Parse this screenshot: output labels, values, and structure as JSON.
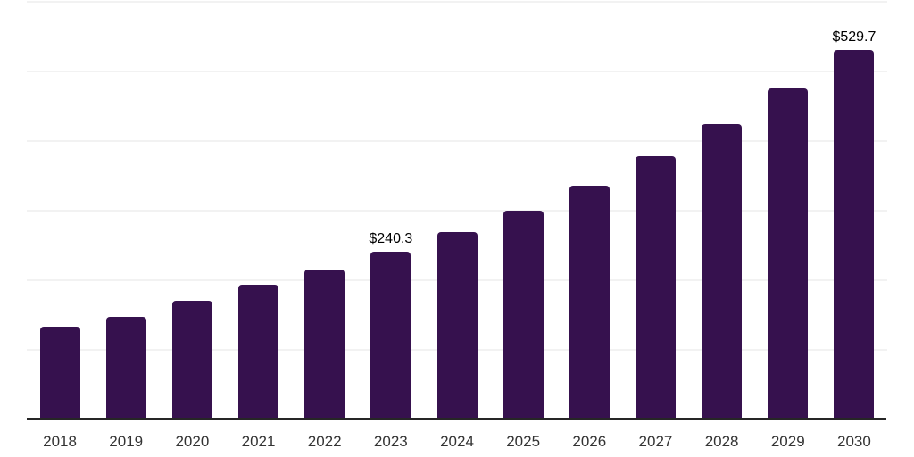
{
  "chart_data": {
    "type": "bar",
    "title": "",
    "categories": [
      "2018",
      "2019",
      "2020",
      "2021",
      "2022",
      "2023",
      "2024",
      "2025",
      "2026",
      "2027",
      "2028",
      "2029",
      "2030"
    ],
    "values": [
      132.1,
      145.8,
      168.8,
      191.9,
      213.7,
      240.3,
      267.9,
      298.7,
      335.0,
      376.9,
      422.7,
      473.9,
      529.7
    ],
    "data_labels": [
      "",
      "",
      "",
      "",
      "",
      "$240.3",
      "",
      "",
      "",
      "",
      "",
      "",
      "$529.7"
    ],
    "xlabel": "",
    "ylabel": "",
    "ylim": [
      0,
      600
    ],
    "gridline_interval": 100,
    "grid": true,
    "legend": "none",
    "y_axis_labels_visible": false
  },
  "style": {
    "bar_color": "#36114E",
    "axis_line_color": "#262626",
    "gridline_color": "#f2f2f2",
    "data_label_color": "#000000",
    "tick_label_color": "#333333",
    "background_color": "#ffffff"
  }
}
